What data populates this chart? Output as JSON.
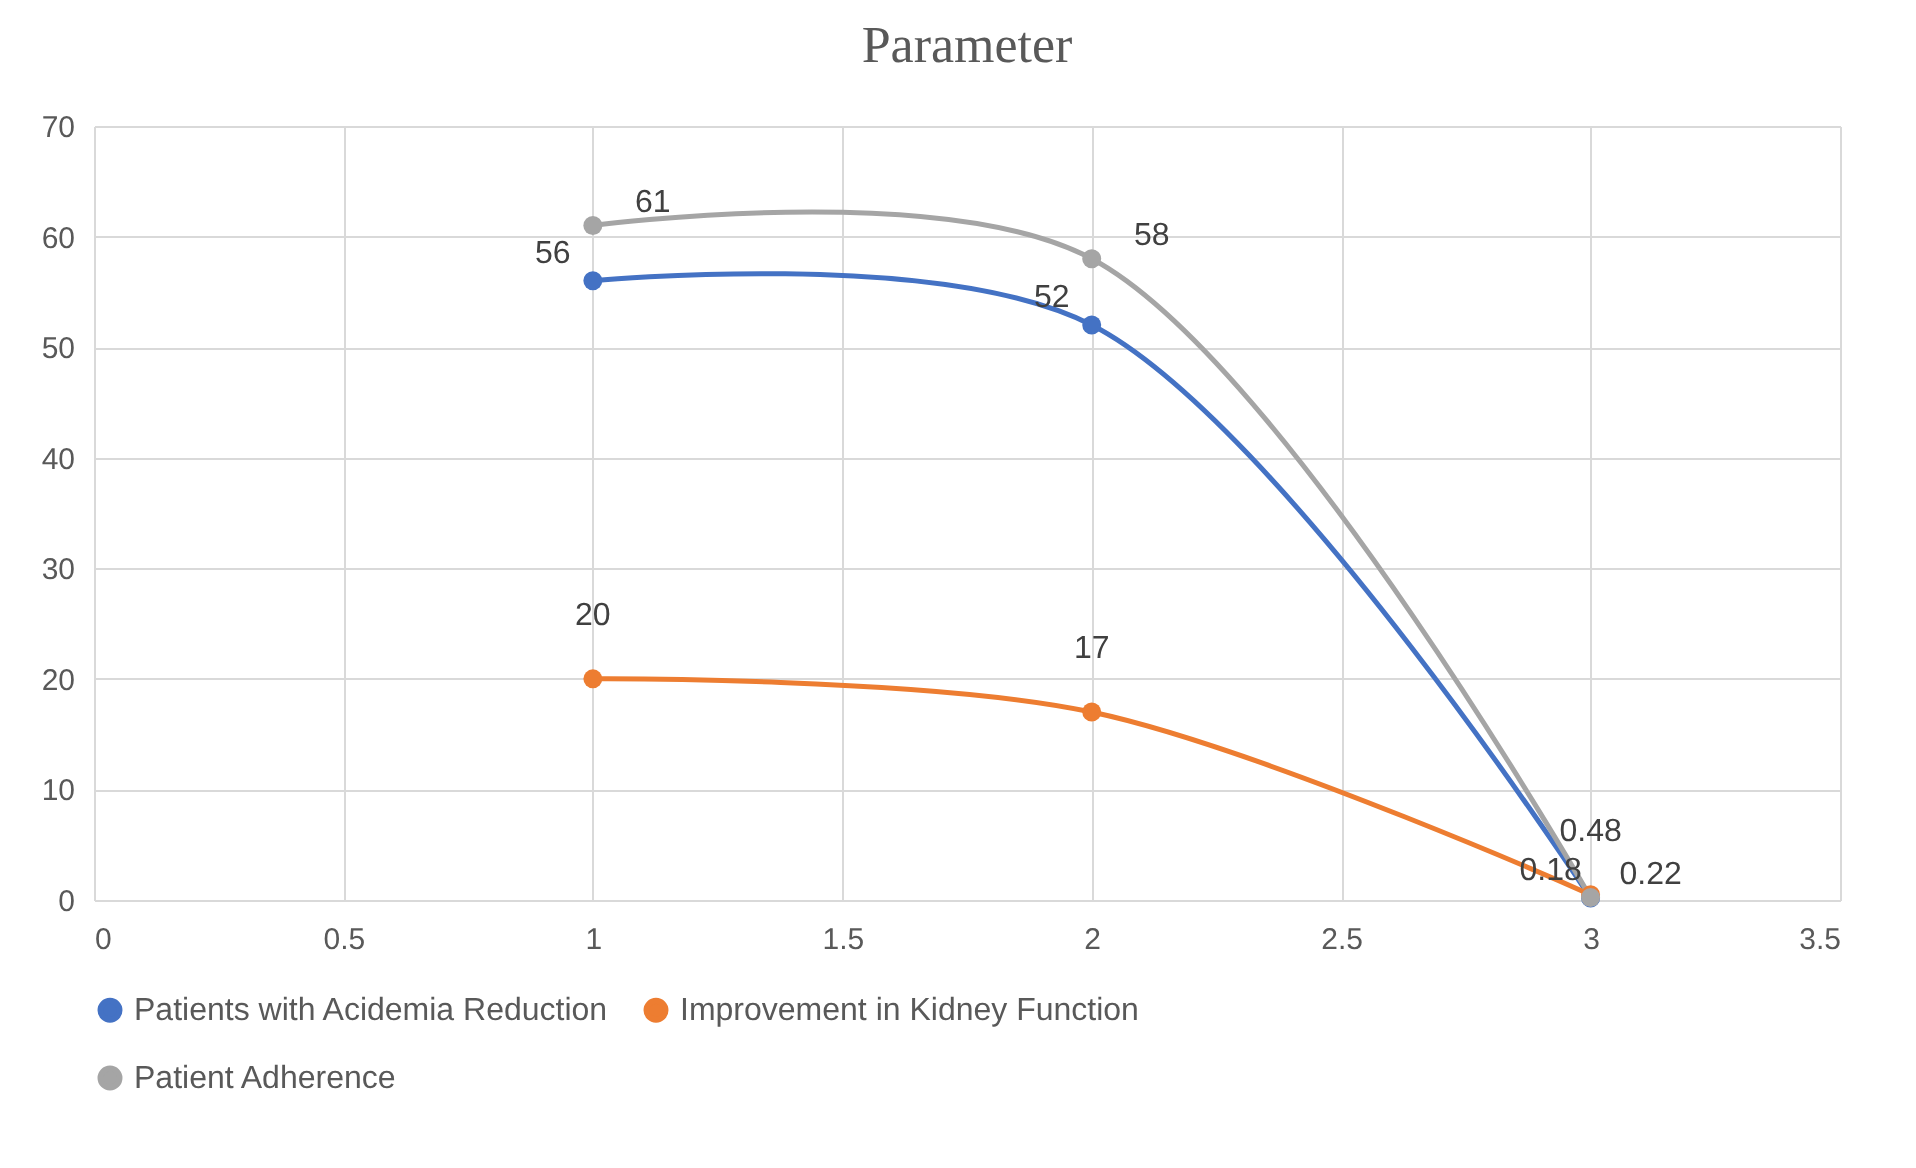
{
  "chart_data": {
    "type": "line",
    "title": "Parameter",
    "x": [
      1,
      2,
      3
    ],
    "series": [
      {
        "name": "Patients with Acidemia Reduction",
        "color": "#4472c4",
        "values": [
          56,
          52,
          0.18
        ]
      },
      {
        "name": "Improvement in Kidney Function",
        "color": "#ed7d31",
        "values": [
          20,
          17,
          0.48
        ]
      },
      {
        "name": "Patient Adherence",
        "color": "#a5a5a5",
        "values": [
          61,
          58,
          0.22
        ]
      }
    ],
    "xlim": [
      0,
      3.5
    ],
    "xticks": [
      0,
      0.5,
      1,
      1.5,
      2,
      2.5,
      3,
      3.5
    ],
    "ylim": [
      0,
      70
    ],
    "yticks": [
      0,
      10,
      20,
      30,
      40,
      50,
      60,
      70
    ],
    "grid": true,
    "legend": "bottom",
    "marker": "circle",
    "line_style": "solid",
    "data_labels": true
  }
}
